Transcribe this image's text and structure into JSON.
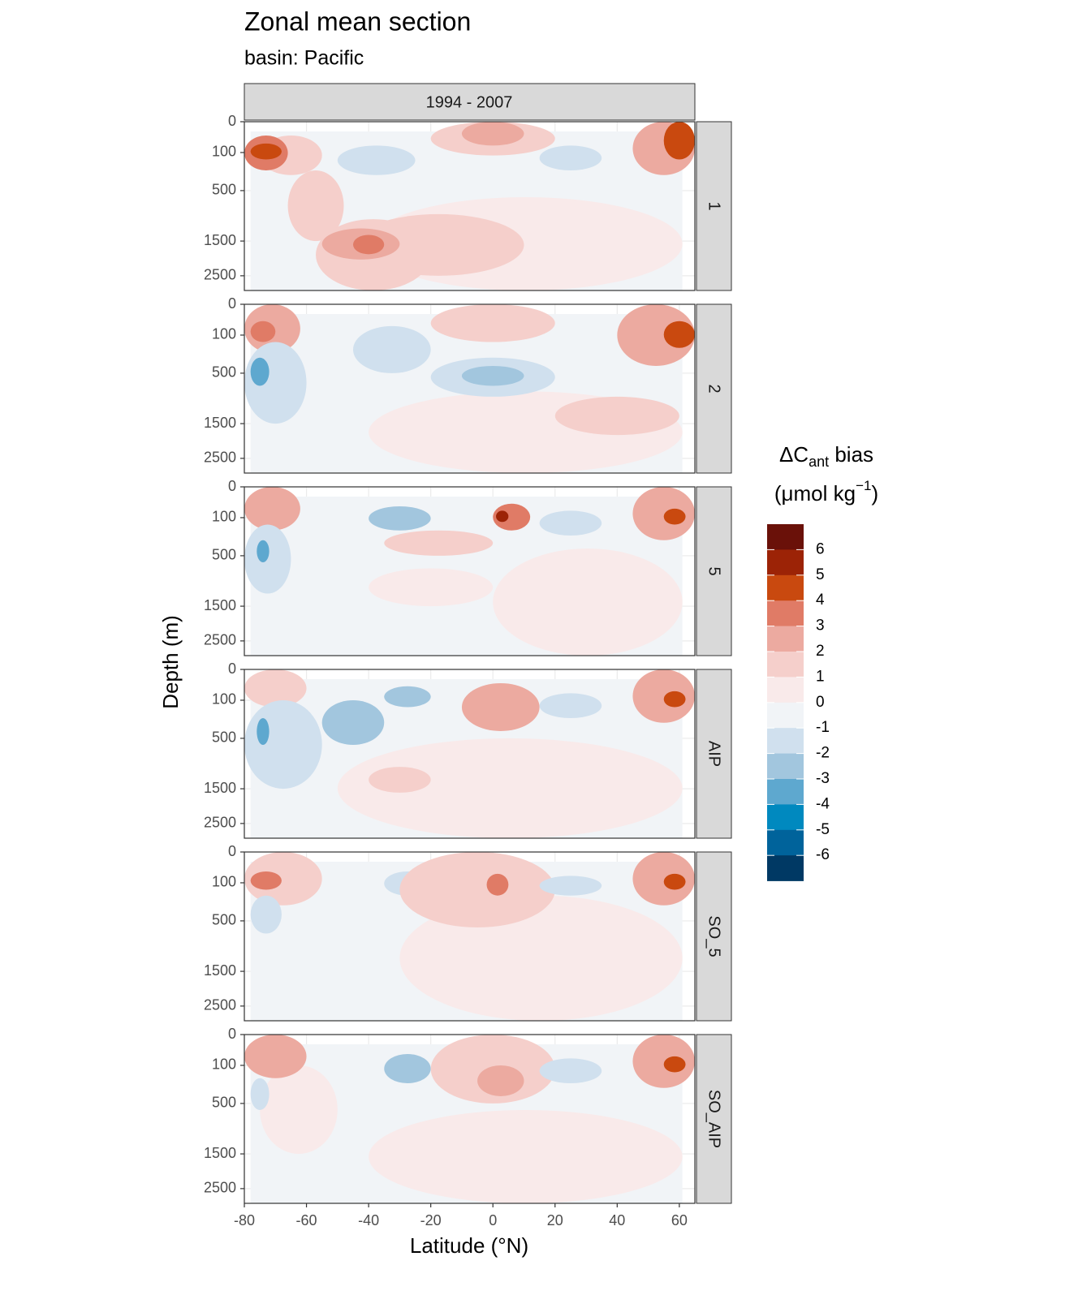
{
  "chart_data": {
    "type": "contour",
    "title": "Zonal mean section",
    "subtitle": "basin: Pacific",
    "strip": "1994 - 2007",
    "x_label": "Latitude (°N)",
    "y_label": "Depth (m)",
    "xlim": [
      -80,
      65
    ],
    "xticks": [
      -80,
      -60,
      -40,
      -20,
      0,
      20,
      40,
      60
    ],
    "ylim": [
      0,
      3000
    ],
    "y_scale": "sqrt",
    "y_reversed": true,
    "yticks": [
      0,
      100,
      500,
      1500,
      2500
    ],
    "grid": true,
    "legend": {
      "title": "ΔC",
      "title_sub": "ant",
      "title_rest": " bias",
      "unit": "(μmol kg",
      "unit_sup": "−1",
      "unit_end": ")",
      "colors": [
        "#6a1109",
        "#9c2306",
        "#c9490f",
        "#e07b66",
        "#ecaaa0",
        "#f5cfcb",
        "#f9eaea",
        "#f1f4f7",
        "#d0e0ee",
        "#a2c6de",
        "#5ea8cf",
        "#0089bf",
        "#00639b",
        "#003964"
      ],
      "breaks": [
        6,
        5,
        4,
        3,
        2,
        1,
        0,
        -1,
        -2,
        -3,
        -4,
        -5,
        -6
      ]
    },
    "panels": [
      {
        "name": "1",
        "field": {
          "lat": [
            -78,
            61
          ],
          "depth": [
            10,
            3000
          ],
          "value": -0.5
        },
        "regions": [
          {
            "lat": [
              -40,
              61
            ],
            "depth": [
              600,
              3000
            ],
            "value": 0.5
          },
          {
            "lat": [
              -75,
              -55
            ],
            "depth": [
              20,
              300
            ],
            "value": 1.5
          },
          {
            "lat": [
              -66,
              -48
            ],
            "depth": [
              250,
              1500
            ],
            "value": 1.5
          },
          {
            "lat": [
              -57,
              -20
            ],
            "depth": [
              1000,
              3000
            ],
            "value": 1.5
          },
          {
            "lat": [
              -45,
              10
            ],
            "depth": [
              900,
              2500
            ],
            "value": 1.5
          },
          {
            "lat": [
              -55,
              -30
            ],
            "depth": [
              1200,
              2000
            ],
            "value": 2.5
          },
          {
            "lat": [
              -45,
              -35
            ],
            "depth": [
              1350,
              1850
            ],
            "value": 3.5
          },
          {
            "lat": [
              -80,
              -66
            ],
            "depth": [
              20,
              250
            ],
            "value": 3.5
          },
          {
            "lat": [
              -78,
              -68
            ],
            "depth": [
              50,
              150
            ],
            "value": 4.5
          },
          {
            "lat": [
              -20,
              20
            ],
            "depth": [
              0,
              120
            ],
            "value": 1.5
          },
          {
            "lat": [
              -10,
              10
            ],
            "depth": [
              0,
              60
            ],
            "value": 2.5
          },
          {
            "lat": [
              -50,
              -25
            ],
            "depth": [
              60,
              300
            ],
            "value": -1.5
          },
          {
            "lat": [
              15,
              35
            ],
            "depth": [
              60,
              250
            ],
            "value": -1.5
          },
          {
            "lat": [
              45,
              65
            ],
            "depth": [
              0,
              300
            ],
            "value": 2.5
          },
          {
            "lat": [
              55,
              65
            ],
            "depth": [
              0,
              150
            ],
            "value": 4.5
          }
        ]
      },
      {
        "name": "2",
        "field": {
          "lat": [
            -78,
            61
          ],
          "depth": [
            10,
            3000
          ],
          "value": -0.5
        },
        "regions": [
          {
            "lat": [
              -40,
              61
            ],
            "depth": [
              800,
              3000
            ],
            "value": 0.5
          },
          {
            "lat": [
              20,
              60
            ],
            "depth": [
              900,
              1800
            ],
            "value": 1.5
          },
          {
            "lat": [
              -80,
              -62
            ],
            "depth": [
              0,
              250
            ],
            "value": 2.5
          },
          {
            "lat": [
              -78,
              -70
            ],
            "depth": [
              30,
              150
            ],
            "value": 3.5
          },
          {
            "lat": [
              -80,
              -60
            ],
            "depth": [
              150,
              1500
            ],
            "value": -1.5
          },
          {
            "lat": [
              -78,
              -72
            ],
            "depth": [
              300,
              700
            ],
            "value": -3.5
          },
          {
            "lat": [
              -45,
              -20
            ],
            "depth": [
              50,
              500
            ],
            "value": -1.5
          },
          {
            "lat": [
              -20,
              20
            ],
            "depth": [
              300,
              900
            ],
            "value": -1.5
          },
          {
            "lat": [
              -10,
              10
            ],
            "depth": [
              400,
              700
            ],
            "value": -2.5
          },
          {
            "lat": [
              -20,
              20
            ],
            "depth": [
              0,
              150
            ],
            "value": 1.5
          },
          {
            "lat": [
              40,
              65
            ],
            "depth": [
              0,
              400
            ],
            "value": 2.5
          },
          {
            "lat": [
              55,
              65
            ],
            "depth": [
              30,
              200
            ],
            "value": 4.5
          }
        ]
      },
      {
        "name": "5",
        "field": {
          "lat": [
            -78,
            61
          ],
          "depth": [
            10,
            3000
          ],
          "value": -0.5
        },
        "regions": [
          {
            "lat": [
              0,
              61
            ],
            "depth": [
              400,
              3000
            ],
            "value": 0.5
          },
          {
            "lat": [
              -40,
              0
            ],
            "depth": [
              700,
              1500
            ],
            "value": 0.5
          },
          {
            "lat": [
              -80,
              -62
            ],
            "depth": [
              0,
              200
            ],
            "value": 2.5
          },
          {
            "lat": [
              -80,
              -65
            ],
            "depth": [
              150,
              1200
            ],
            "value": -1.5
          },
          {
            "lat": [
              -76,
              -72
            ],
            "depth": [
              300,
              600
            ],
            "value": -3.5
          },
          {
            "lat": [
              -40,
              -20
            ],
            "depth": [
              40,
              200
            ],
            "value": -2.5
          },
          {
            "lat": [
              -35,
              0
            ],
            "depth": [
              200,
              500
            ],
            "value": 1.5
          },
          {
            "lat": [
              0,
              12
            ],
            "depth": [
              30,
              200
            ],
            "value": 3.5
          },
          {
            "lat": [
              1,
              5
            ],
            "depth": [
              60,
              130
            ],
            "value": 5.5
          },
          {
            "lat": [
              15,
              35
            ],
            "depth": [
              60,
              250
            ],
            "value": -1.5
          },
          {
            "lat": [
              45,
              65
            ],
            "depth": [
              0,
              300
            ],
            "value": 2.5
          },
          {
            "lat": [
              55,
              62
            ],
            "depth": [
              50,
              150
            ],
            "value": 4.5
          }
        ]
      },
      {
        "name": "AIP",
        "field": {
          "lat": [
            -78,
            61
          ],
          "depth": [
            10,
            3000
          ],
          "value": -0.5
        },
        "regions": [
          {
            "lat": [
              -50,
              61
            ],
            "depth": [
              500,
              3000
            ],
            "value": 0.5
          },
          {
            "lat": [
              -80,
              -60
            ],
            "depth": [
              0,
              150
            ],
            "value": 1.5
          },
          {
            "lat": [
              -80,
              -55
            ],
            "depth": [
              100,
              1500
            ],
            "value": -1.5
          },
          {
            "lat": [
              -76,
              -72
            ],
            "depth": [
              250,
              600
            ],
            "value": -3.5
          },
          {
            "lat": [
              -55,
              -35
            ],
            "depth": [
              100,
              600
            ],
            "value": -2.5
          },
          {
            "lat": [
              -35,
              -20
            ],
            "depth": [
              30,
              150
            ],
            "value": -2.5
          },
          {
            "lat": [
              -10,
              15
            ],
            "depth": [
              20,
              400
            ],
            "value": 2.5
          },
          {
            "lat": [
              -40,
              -20
            ],
            "depth": [
              1000,
              1600
            ],
            "value": 1.5
          },
          {
            "lat": [
              15,
              35
            ],
            "depth": [
              60,
              250
            ],
            "value": -1.5
          },
          {
            "lat": [
              45,
              65
            ],
            "depth": [
              0,
              300
            ],
            "value": 2.5
          },
          {
            "lat": [
              55,
              62
            ],
            "depth": [
              50,
              150
            ],
            "value": 4.5
          }
        ]
      },
      {
        "name": "SO_5",
        "field": {
          "lat": [
            -78,
            61
          ],
          "depth": [
            10,
            3000
          ],
          "value": -0.5
        },
        "regions": [
          {
            "lat": [
              -30,
              61
            ],
            "depth": [
              200,
              3000
            ],
            "value": 0.5
          },
          {
            "lat": [
              -80,
              -55
            ],
            "depth": [
              0,
              300
            ],
            "value": 1.5
          },
          {
            "lat": [
              -78,
              -68
            ],
            "depth": [
              40,
              150
            ],
            "value": 3.5
          },
          {
            "lat": [
              -78,
              -68
            ],
            "depth": [
              200,
              700
            ],
            "value": -1.5
          },
          {
            "lat": [
              -35,
              -20
            ],
            "depth": [
              40,
              200
            ],
            "value": -1.5
          },
          {
            "lat": [
              -30,
              20
            ],
            "depth": [
              0,
              600
            ],
            "value": 1.5
          },
          {
            "lat": [
              -2,
              5
            ],
            "depth": [
              50,
              200
            ],
            "value": 3.5
          },
          {
            "lat": [
              15,
              35
            ],
            "depth": [
              60,
              200
            ],
            "value": -1.5
          },
          {
            "lat": [
              45,
              65
            ],
            "depth": [
              0,
              300
            ],
            "value": 2.5
          },
          {
            "lat": [
              55,
              62
            ],
            "depth": [
              50,
              150
            ],
            "value": 4.5
          }
        ]
      },
      {
        "name": "SO_AIP",
        "field": {
          "lat": [
            -78,
            61
          ],
          "depth": [
            10,
            3000
          ],
          "value": -0.5
        },
        "regions": [
          {
            "lat": [
              -40,
              61
            ],
            "depth": [
              600,
              3000
            ],
            "value": 0.5
          },
          {
            "lat": [
              -75,
              -50
            ],
            "depth": [
              100,
              1500
            ],
            "value": 0.5
          },
          {
            "lat": [
              -80,
              -60
            ],
            "depth": [
              0,
              200
            ],
            "value": 2.5
          },
          {
            "lat": [
              -78,
              -72
            ],
            "depth": [
              200,
              600
            ],
            "value": -1.5
          },
          {
            "lat": [
              -35,
              -20
            ],
            "depth": [
              40,
              250
            ],
            "value": -2.5
          },
          {
            "lat": [
              -20,
              20
            ],
            "depth": [
              0,
              500
            ],
            "value": 1.5
          },
          {
            "lat": [
              -5,
              10
            ],
            "depth": [
              100,
              400
            ],
            "value": 2.5
          },
          {
            "lat": [
              15,
              35
            ],
            "depth": [
              60,
              250
            ],
            "value": -1.5
          },
          {
            "lat": [
              45,
              65
            ],
            "depth": [
              0,
              300
            ],
            "value": 2.5
          },
          {
            "lat": [
              55,
              62
            ],
            "depth": [
              50,
              150
            ],
            "value": 4.5
          }
        ]
      }
    ]
  }
}
